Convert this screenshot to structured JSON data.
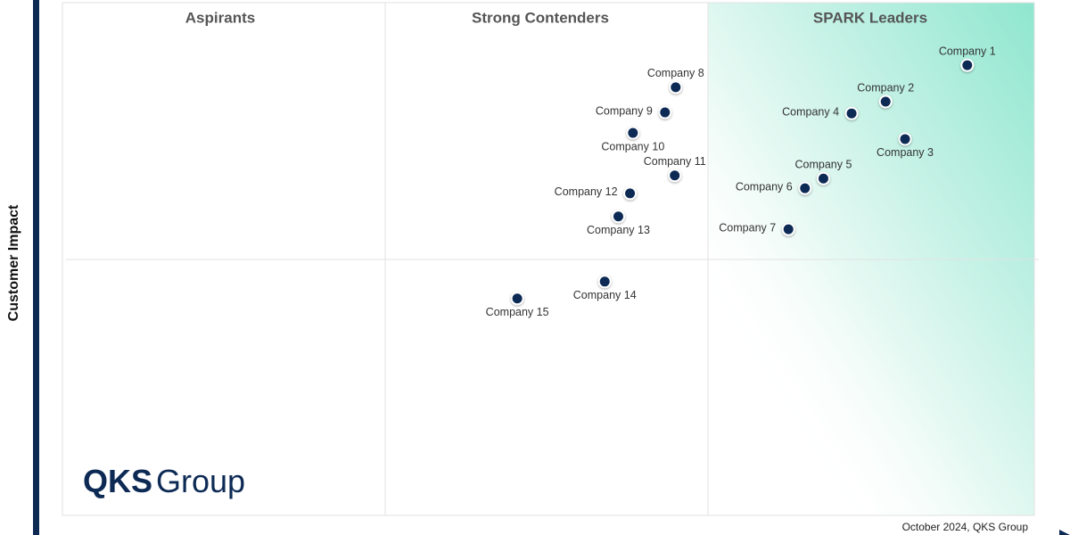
{
  "chart_data": {
    "type": "scatter",
    "y_label": "Customer Impact",
    "regions": [
      "Aspirants",
      "Strong Contenders",
      "SPARK Leaders"
    ],
    "point_labels": [
      "Company 1",
      "Company 2",
      "Company 3",
      "Company 4",
      "Company 5",
      "Company 6",
      "Company 7",
      "Company 8",
      "Company 9",
      "Company 10",
      "Company 11",
      "Company 12",
      "Company 13",
      "Company 14",
      "Company 15"
    ],
    "x": [
      93.1,
      84.7,
      86.7,
      81.2,
      78.3,
      76.4,
      74.7,
      63.1,
      62.0,
      58.7,
      63.0,
      58.4,
      57.2,
      55.8,
      46.8
    ],
    "values": [
      87.8,
      80.7,
      73.4,
      78.4,
      65.7,
      63.8,
      55.8,
      83.5,
      78.6,
      74.6,
      66.3,
      62.8,
      58.3,
      45.6,
      42.3
    ],
    "color": "#0d2a55",
    "xlim": [
      0,
      100
    ],
    "ylim": [
      0,
      100
    ],
    "logo": {
      "bold": "QKS",
      "text": "Group"
    },
    "note": "October 2024, QKS Group"
  }
}
